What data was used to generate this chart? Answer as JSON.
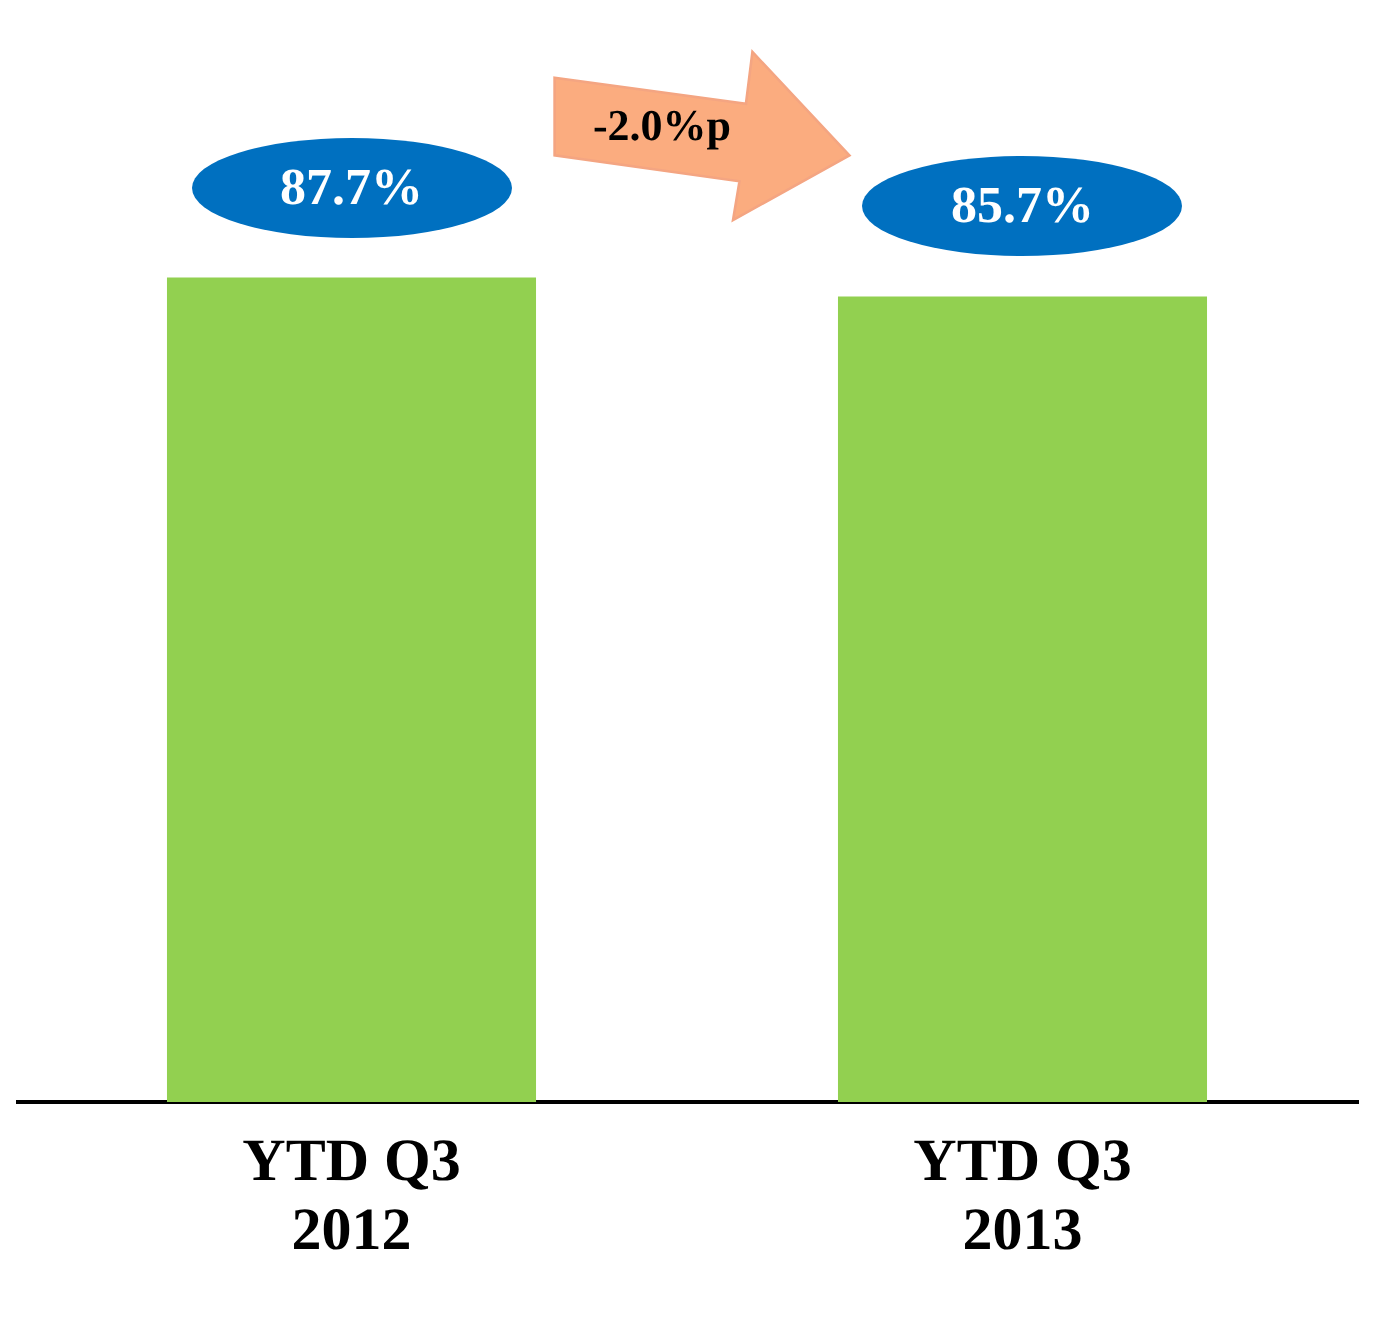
{
  "chart_data": {
    "type": "bar",
    "categories": [
      "YTD Q3 2012",
      "YTD Q3 2013"
    ],
    "values": [
      87.7,
      85.7
    ],
    "value_labels": [
      "87.7%",
      "85.7%"
    ],
    "colors": [
      "#92d050",
      "#92d050"
    ],
    "grid": false,
    "legend": false,
    "annotations": [
      "-2.0%p"
    ]
  }
}
